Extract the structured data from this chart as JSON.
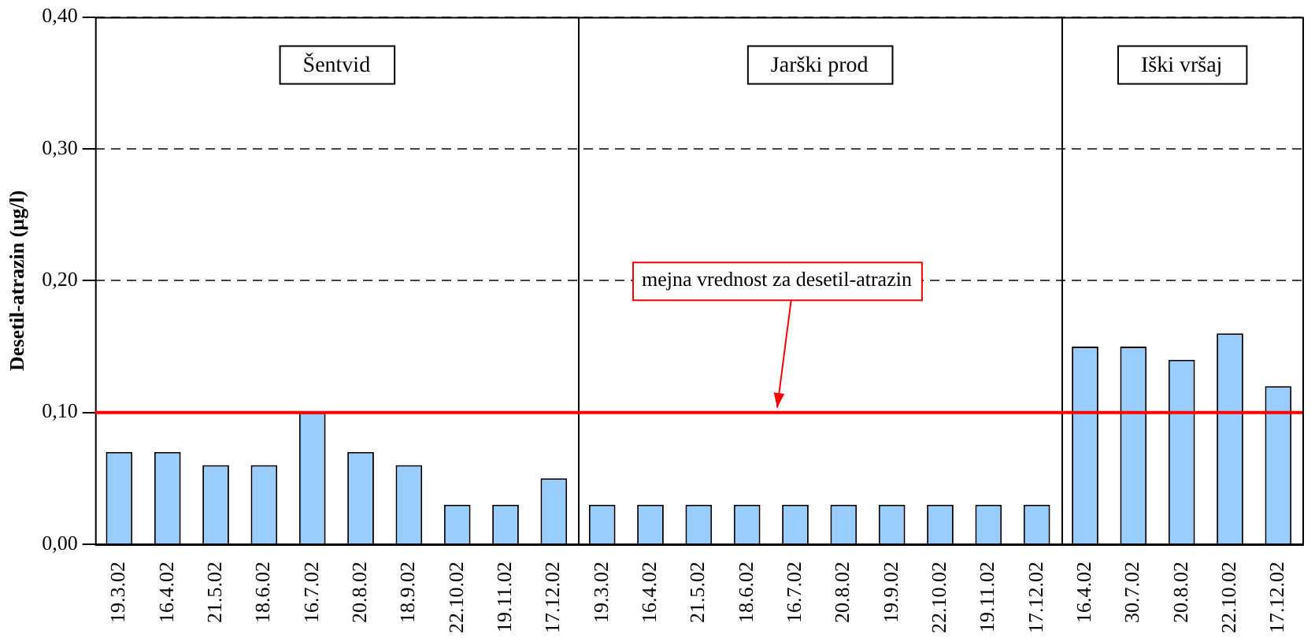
{
  "chart_data": {
    "type": "bar",
    "ylabel": "Desetil-atrazin (µg/l)",
    "categories": [
      "19.3.02",
      "16.4.02",
      "21.5.02",
      "18.6.02",
      "16.7.02",
      "20.8.02",
      "18.9.02",
      "22.10.02",
      "19.11.02",
      "17.12.02",
      "19.3.02",
      "16.4.02",
      "21.5.02",
      "18.6.02",
      "16.7.02",
      "20.8.02",
      "19.9.02",
      "22.10.02",
      "19.11.02",
      "17.12.02",
      "16.4.02",
      "30.7.02",
      "20.8.02",
      "22.10.02",
      "17.12.02"
    ],
    "series": [
      {
        "color": "#99ccff",
        "values": [
          0.07,
          0.07,
          0.06,
          0.06,
          0.1,
          0.07,
          0.06,
          0.03,
          0.03,
          0.05,
          null,
          null,
          null,
          null,
          null,
          null,
          null,
          null,
          null,
          null,
          null,
          null,
          null,
          null,
          null
        ]
      },
      {
        "color": "#99ccff",
        "values": [
          null,
          null,
          null,
          null,
          null,
          null,
          null,
          null,
          null,
          null,
          0.03,
          0.03,
          0.03,
          0.03,
          0.03,
          0.03,
          0.03,
          0.03,
          0.03,
          0.03,
          null,
          null,
          null,
          null,
          null
        ]
      },
      {
        "color": "#99ccff",
        "values": [
          null,
          null,
          null,
          null,
          null,
          null,
          null,
          null,
          null,
          null,
          null,
          null,
          null,
          null,
          null,
          null,
          null,
          null,
          null,
          null,
          0.15,
          0.15,
          0.14,
          0.16,
          0.12
        ]
      }
    ],
    "ylim": [
      0,
      0.4
    ],
    "yticks": [
      {
        "value": 0,
        "label": "0,00"
      },
      {
        "value": 0.1,
        "label": "0,10"
      },
      {
        "value": 0.2,
        "label": "0,20"
      },
      {
        "value": 0.3,
        "label": "0,30"
      },
      {
        "value": 0.4,
        "label": "0,40"
      }
    ],
    "grid": "y",
    "line_style": "dashed",
    "ref_lines": [
      {
        "axis": "y",
        "value": 0.1,
        "label": "mejna vrednost za desetil-atrazin",
        "color": "#ff0000"
      }
    ],
    "annotations": [
      "Šentvid",
      "Jarški prod",
      "Iški vršaj"
    ]
  }
}
